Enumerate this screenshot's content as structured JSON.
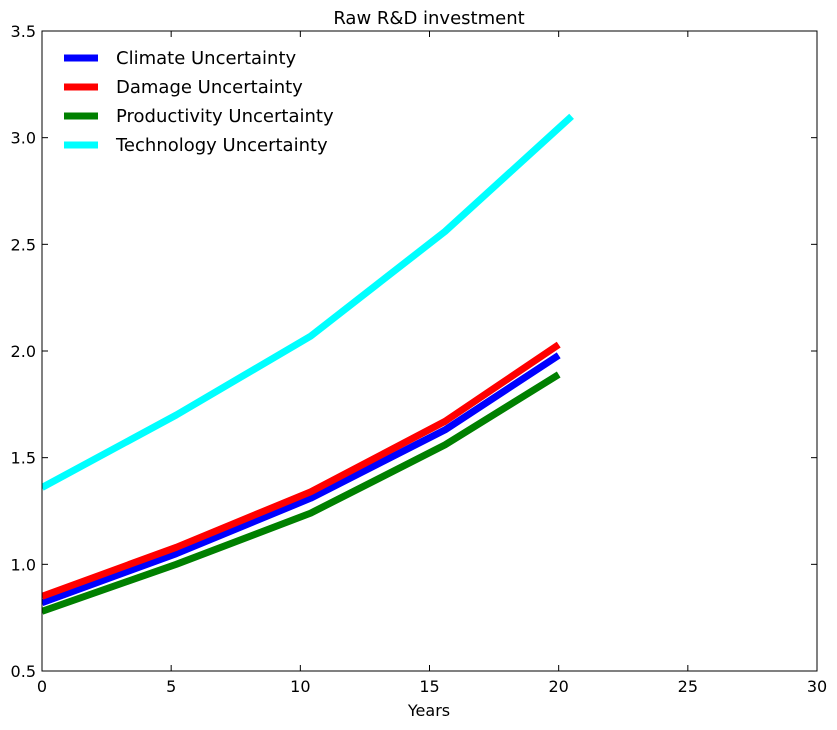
{
  "chart_data": {
    "type": "line",
    "title": "Raw R&D investment",
    "xlabel": "Years",
    "ylabel": "",
    "xlim": [
      0,
      30
    ],
    "ylim": [
      0.5,
      3.5
    ],
    "xticks": [
      "0",
      "5",
      "10",
      "15",
      "20",
      "25",
      "30"
    ],
    "yticks": [
      "0.5",
      "1.0",
      "1.5",
      "2.0",
      "2.5",
      "3.0",
      "3.5"
    ],
    "grid": false,
    "legend_position": "top-left",
    "series": [
      {
        "name": "Climate Uncertainty",
        "color": "#0000ff",
        "x": [
          0,
          5.2,
          10.4,
          15.6,
          20
        ],
        "y": [
          0.82,
          1.05,
          1.31,
          1.63,
          1.98
        ]
      },
      {
        "name": "Damage Uncertainty",
        "color": "#ff0000",
        "x": [
          0,
          5.2,
          10.4,
          15.6,
          20
        ],
        "y": [
          0.85,
          1.08,
          1.34,
          1.67,
          2.03
        ]
      },
      {
        "name": "Productivity Uncertainty",
        "color": "#008000",
        "x": [
          0,
          5.2,
          10.4,
          15.6,
          20
        ],
        "y": [
          0.78,
          1.0,
          1.24,
          1.56,
          1.89
        ]
      },
      {
        "name": "Technology Uncertainty",
        "color": "#00ffff",
        "x": [
          0,
          5.2,
          10.4,
          15.6,
          20.5
        ],
        "y": [
          1.36,
          1.7,
          2.07,
          2.56,
          3.1
        ]
      }
    ]
  }
}
